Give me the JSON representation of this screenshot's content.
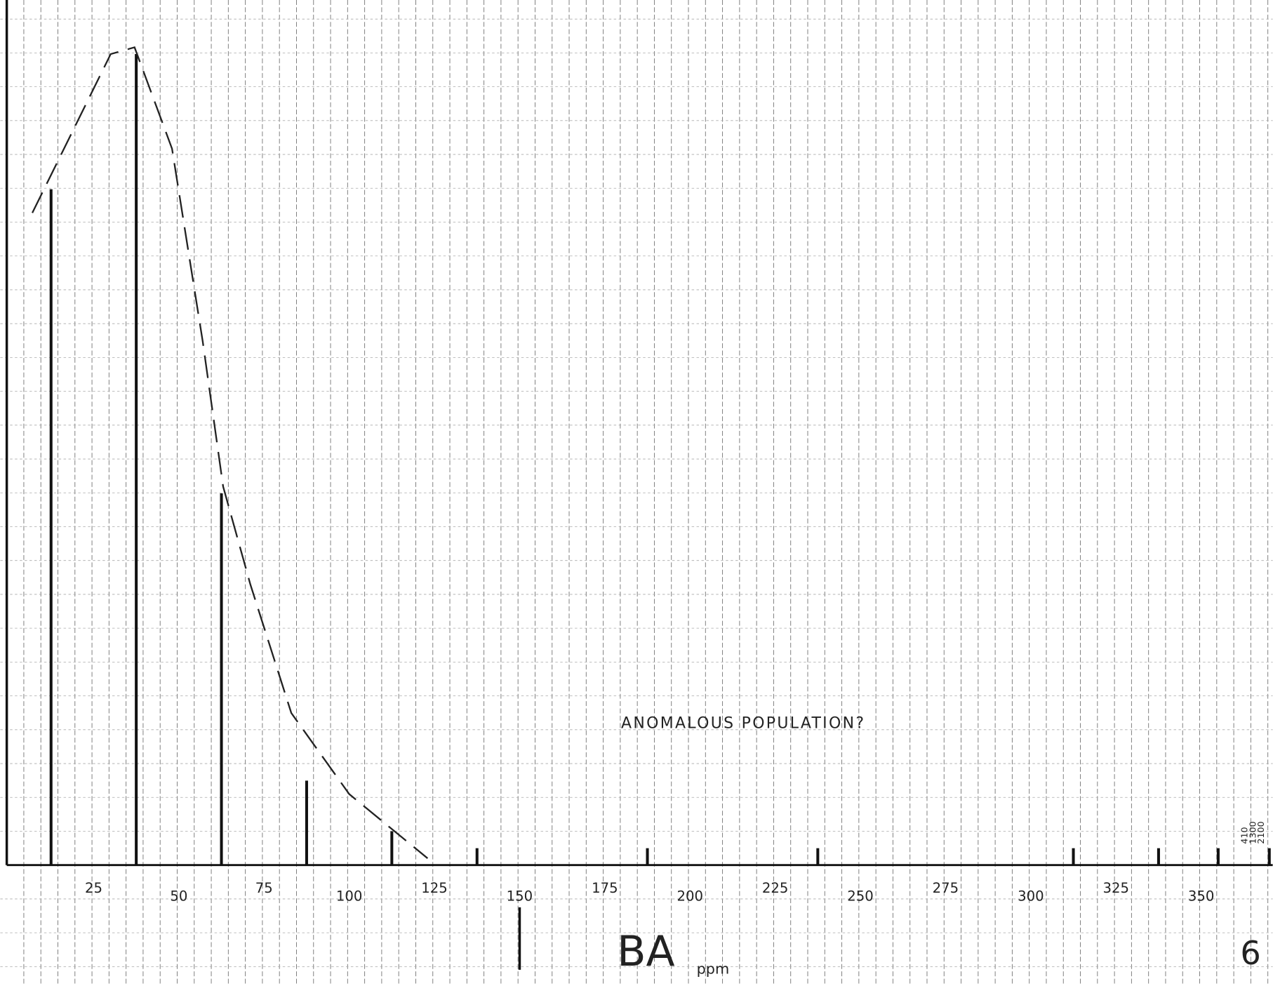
{
  "chart_data": {
    "type": "bar",
    "x": [
      12.5,
      37.5,
      62.5,
      87.5,
      112.5,
      137.5,
      187.5,
      237.5,
      312.5,
      337.5,
      355,
      370
    ],
    "values": [
      20,
      24,
      11,
      2.5,
      1,
      0.5,
      0.5,
      0.5,
      0.5,
      0.5,
      0.5,
      0.5
    ],
    "color": "#111111",
    "xlim": [
      -2.4,
      371
    ],
    "ylim": [
      0,
      25.6
    ],
    "xticks": [
      25,
      50,
      75,
      100,
      125,
      150,
      175,
      200,
      225,
      250,
      275,
      300,
      325,
      350
    ],
    "xlabel": "BA",
    "xunit": "ppm",
    "annotation": "ANOMALOUS POPULATION?",
    "fit_curve": {
      "x": [
        7,
        30,
        37,
        48,
        57,
        63,
        71,
        83,
        100,
        123
      ],
      "y": [
        19.3,
        24.0,
        24.2,
        21.2,
        15.5,
        11.2,
        8.3,
        4.5,
        2.1,
        0.2
      ]
    },
    "outlier_labels": [
      "410",
      "1300",
      "2100"
    ],
    "page_number": "6"
  }
}
